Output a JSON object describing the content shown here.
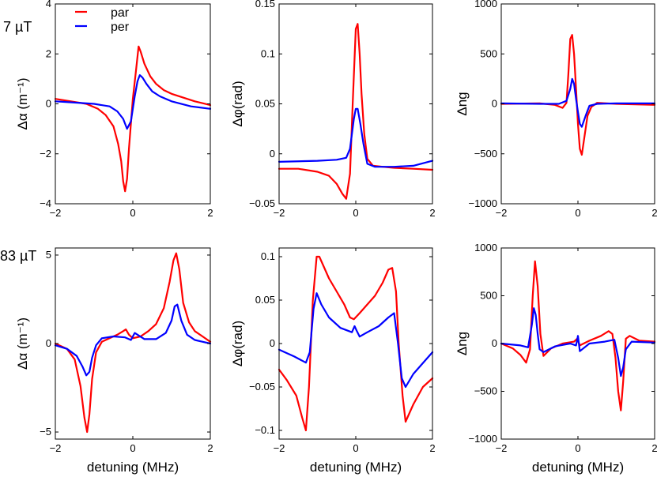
{
  "row_labels": [
    "7 µT",
    "83 µT"
  ],
  "legend": [
    {
      "name": "par",
      "color": "#ff0000"
    },
    {
      "name": "per",
      "color": "#0000ff"
    }
  ],
  "xlabel": "detuning (MHz)",
  "chart_data": [
    {
      "type": "line",
      "row": 0,
      "col": 0,
      "ylabel": "Δα (m⁻¹)",
      "xlim": [
        -2,
        2
      ],
      "ylim": [
        -4,
        4
      ],
      "xticks": [
        -2,
        0,
        2
      ],
      "yticks": [
        -4,
        -2,
        0,
        2,
        4
      ],
      "series": [
        {
          "name": "par",
          "color": "#ff0000",
          "x": [
            -2,
            -1.6,
            -1.2,
            -0.9,
            -0.7,
            -0.5,
            -0.38,
            -0.3,
            -0.25,
            -0.2,
            -0.15,
            -0.1,
            0,
            0.08,
            0.15,
            0.2,
            0.3,
            0.45,
            0.6,
            0.8,
            1.0,
            1.3,
            1.6,
            2.0
          ],
          "y": [
            0.2,
            0.1,
            0,
            -0.2,
            -0.45,
            -0.9,
            -1.6,
            -2.3,
            -3.1,
            -3.5,
            -3.0,
            -1.8,
            0.2,
            1.3,
            2.3,
            2.1,
            1.6,
            1.1,
            0.8,
            0.55,
            0.4,
            0.25,
            0.1,
            -0.05
          ]
        },
        {
          "name": "per",
          "color": "#0000ff",
          "x": [
            -2,
            -1.5,
            -1.0,
            -0.6,
            -0.4,
            -0.25,
            -0.15,
            -0.05,
            0.05,
            0.12,
            0.18,
            0.25,
            0.35,
            0.5,
            0.7,
            1.0,
            1.5,
            2.0
          ],
          "y": [
            0.1,
            0.05,
            0,
            -0.1,
            -0.3,
            -0.6,
            -1.0,
            -0.7,
            0.3,
            0.9,
            1.15,
            1.05,
            0.8,
            0.5,
            0.3,
            0.1,
            -0.1,
            -0.2
          ]
        }
      ]
    },
    {
      "type": "line",
      "row": 0,
      "col": 1,
      "ylabel": "Δφ(rad)",
      "xlim": [
        -2,
        2
      ],
      "ylim": [
        -0.05,
        0.15
      ],
      "xticks": [
        -2,
        0,
        2
      ],
      "yticks": [
        -0.05,
        0,
        0.05,
        0.1,
        0.15
      ],
      "series": [
        {
          "name": "par",
          "color": "#ff0000",
          "x": [
            -2,
            -1.5,
            -1.0,
            -0.7,
            -0.5,
            -0.35,
            -0.25,
            -0.15,
            -0.08,
            0,
            0.05,
            0.1,
            0.15,
            0.22,
            0.3,
            0.45,
            0.7,
            1.0,
            1.5,
            2.0
          ],
          "y": [
            -0.015,
            -0.015,
            -0.018,
            -0.022,
            -0.03,
            -0.04,
            -0.045,
            -0.02,
            0.05,
            0.125,
            0.13,
            0.1,
            0.06,
            0.02,
            -0.005,
            -0.012,
            -0.013,
            -0.014,
            -0.015,
            -0.016
          ]
        },
        {
          "name": "per",
          "color": "#0000ff",
          "x": [
            -2,
            -1.0,
            -0.5,
            -0.25,
            -0.15,
            -0.05,
            0,
            0.05,
            0.12,
            0.2,
            0.3,
            0.5,
            1.0,
            1.5,
            2.0
          ],
          "y": [
            -0.008,
            -0.007,
            -0.006,
            -0.004,
            0.005,
            0.035,
            0.045,
            0.045,
            0.03,
            0.01,
            -0.01,
            -0.013,
            -0.013,
            -0.012,
            -0.007
          ]
        }
      ]
    },
    {
      "type": "line",
      "row": 0,
      "col": 2,
      "ylabel": "Δng",
      "xlim": [
        -2,
        2
      ],
      "ylim": [
        -1000,
        1000
      ],
      "xticks": [
        -2,
        0,
        2
      ],
      "yticks": [
        -1000,
        -500,
        0,
        500,
        1000
      ],
      "series": [
        {
          "name": "par",
          "color": "#ff0000",
          "x": [
            -2,
            -1.0,
            -0.6,
            -0.4,
            -0.3,
            -0.25,
            -0.2,
            -0.15,
            -0.1,
            -0.05,
            0,
            0.05,
            0.1,
            0.15,
            0.25,
            0.35,
            0.5,
            1.0,
            2.0
          ],
          "y": [
            0,
            5,
            -10,
            -40,
            10,
            300,
            650,
            690,
            500,
            150,
            -200,
            -450,
            -510,
            -380,
            -120,
            -30,
            10,
            0,
            -10
          ]
        },
        {
          "name": "per",
          "color": "#0000ff",
          "x": [
            -2,
            -1.0,
            -0.5,
            -0.3,
            -0.2,
            -0.15,
            -0.1,
            -0.05,
            0,
            0.05,
            0.1,
            0.2,
            0.3,
            0.5,
            1.0,
            2.0
          ],
          "y": [
            5,
            0,
            0,
            30,
            150,
            250,
            200,
            50,
            -80,
            -200,
            -230,
            -120,
            -20,
            0,
            5,
            5
          ]
        }
      ]
    },
    {
      "type": "line",
      "row": 1,
      "col": 0,
      "ylabel": "Δα (m⁻¹)",
      "xlim": [
        -2,
        2
      ],
      "ylim": [
        -5.4,
        5.4
      ],
      "xticks": [
        -2,
        0,
        2
      ],
      "yticks": [
        -5,
        0,
        5
      ],
      "series": [
        {
          "name": "par",
          "color": "#ff0000",
          "x": [
            -2,
            -1.7,
            -1.5,
            -1.35,
            -1.25,
            -1.18,
            -1.12,
            -1.05,
            -0.95,
            -0.8,
            -0.6,
            -0.4,
            -0.25,
            -0.18,
            -0.1,
            0,
            0.2,
            0.4,
            0.6,
            0.8,
            0.95,
            1.05,
            1.12,
            1.2,
            1.3,
            1.45,
            1.6,
            1.8,
            2.0
          ],
          "y": [
            0,
            -0.3,
            -0.9,
            -2.4,
            -4.2,
            -5.0,
            -4.0,
            -2.0,
            -0.5,
            0.1,
            0.3,
            0.5,
            0.7,
            0.8,
            0.5,
            0.3,
            0.4,
            0.7,
            1.1,
            2.0,
            3.5,
            4.7,
            5.1,
            4.2,
            2.3,
            1.2,
            0.7,
            0.4,
            0.1
          ]
        },
        {
          "name": "per",
          "color": "#0000ff",
          "x": [
            -2,
            -1.7,
            -1.45,
            -1.3,
            -1.2,
            -1.12,
            -1.05,
            -0.95,
            -0.8,
            -0.5,
            -0.2,
            -0.05,
            0.05,
            0.12,
            0.3,
            0.6,
            0.85,
            1.0,
            1.08,
            1.15,
            1.25,
            1.4,
            1.6,
            2.0
          ],
          "y": [
            -0.1,
            -0.3,
            -0.7,
            -1.3,
            -1.8,
            -1.6,
            -0.8,
            -0.1,
            0.3,
            0.4,
            0.35,
            0.2,
            0.6,
            0.5,
            0.25,
            0.25,
            0.6,
            1.3,
            2.1,
            2.2,
            1.3,
            0.5,
            0.2,
            0
          ]
        }
      ]
    },
    {
      "type": "line",
      "row": 1,
      "col": 1,
      "ylabel": "Δφ(rad)",
      "xlim": [
        -2,
        2
      ],
      "ylim": [
        -0.11,
        0.11
      ],
      "xticks": [
        -2,
        0,
        2
      ],
      "yticks": [
        -0.1,
        -0.05,
        0,
        0.05,
        0.1
      ],
      "series": [
        {
          "name": "par",
          "color": "#ff0000",
          "x": [
            -2,
            -1.8,
            -1.55,
            -1.4,
            -1.3,
            -1.22,
            -1.12,
            -1.02,
            -0.95,
            -0.85,
            -0.7,
            -0.5,
            -0.3,
            -0.15,
            -0.05,
            0.1,
            0.3,
            0.5,
            0.7,
            0.85,
            0.95,
            1.05,
            1.12,
            1.22,
            1.3,
            1.5,
            1.75,
            2.0
          ],
          "y": [
            -0.03,
            -0.042,
            -0.06,
            -0.085,
            -0.1,
            -0.05,
            0.05,
            0.1,
            0.1,
            0.09,
            0.075,
            0.06,
            0.045,
            0.03,
            0.028,
            0.035,
            0.045,
            0.055,
            0.07,
            0.085,
            0.087,
            0.06,
            0.0,
            -0.06,
            -0.09,
            -0.07,
            -0.05,
            -0.04
          ]
        },
        {
          "name": "per",
          "color": "#0000ff",
          "x": [
            -2,
            -1.6,
            -1.3,
            -1.2,
            -1.1,
            -1.02,
            -0.9,
            -0.7,
            -0.4,
            -0.1,
            -0.03,
            0.02,
            0.1,
            0.3,
            0.6,
            0.85,
            1.0,
            1.1,
            1.2,
            1.3,
            1.5,
            1.8,
            2.0
          ],
          "y": [
            -0.007,
            -0.015,
            -0.022,
            -0.01,
            0.04,
            0.058,
            0.045,
            0.03,
            0.018,
            0.013,
            0.02,
            0.015,
            0.008,
            0.013,
            0.02,
            0.03,
            0.035,
            0.0,
            -0.04,
            -0.05,
            -0.035,
            -0.02,
            -0.01
          ]
        }
      ]
    },
    {
      "type": "line",
      "row": 1,
      "col": 2,
      "ylabel": "Δng",
      "xlim": [
        -2,
        2
      ],
      "ylim": [
        -1000,
        1000
      ],
      "xticks": [
        -2,
        0,
        2
      ],
      "yticks": [
        -1000,
        -500,
        0,
        500,
        1000
      ],
      "series": [
        {
          "name": "par",
          "color": "#ff0000",
          "x": [
            -2,
            -1.7,
            -1.5,
            -1.35,
            -1.25,
            -1.18,
            -1.12,
            -1.05,
            -0.98,
            -0.9,
            -0.7,
            -0.4,
            -0.1,
            -0.02,
            0.05,
            0.3,
            0.6,
            0.8,
            0.9,
            0.98,
            1.05,
            1.12,
            1.18,
            1.25,
            1.35,
            1.6,
            2.0
          ],
          "y": [
            0,
            -50,
            -120,
            -200,
            -60,
            500,
            860,
            600,
            100,
            -130,
            -50,
            0,
            20,
            50,
            -20,
            30,
            80,
            130,
            100,
            -150,
            -500,
            -700,
            -400,
            50,
            80,
            30,
            20
          ]
        },
        {
          "name": "per",
          "color": "#0000ff",
          "x": [
            -2,
            -1.5,
            -1.3,
            -1.2,
            -1.15,
            -1.1,
            -1.05,
            -1.0,
            -0.9,
            -0.6,
            -0.2,
            -0.05,
            0.0,
            0.05,
            0.3,
            0.7,
            0.95,
            1.05,
            1.12,
            1.18,
            1.25,
            1.4,
            2.0
          ],
          "y": [
            0,
            -20,
            -40,
            200,
            370,
            300,
            100,
            -60,
            -90,
            -30,
            0,
            -20,
            80,
            -80,
            0,
            20,
            40,
            -150,
            -340,
            -250,
            -60,
            20,
            10
          ]
        }
      ]
    }
  ]
}
